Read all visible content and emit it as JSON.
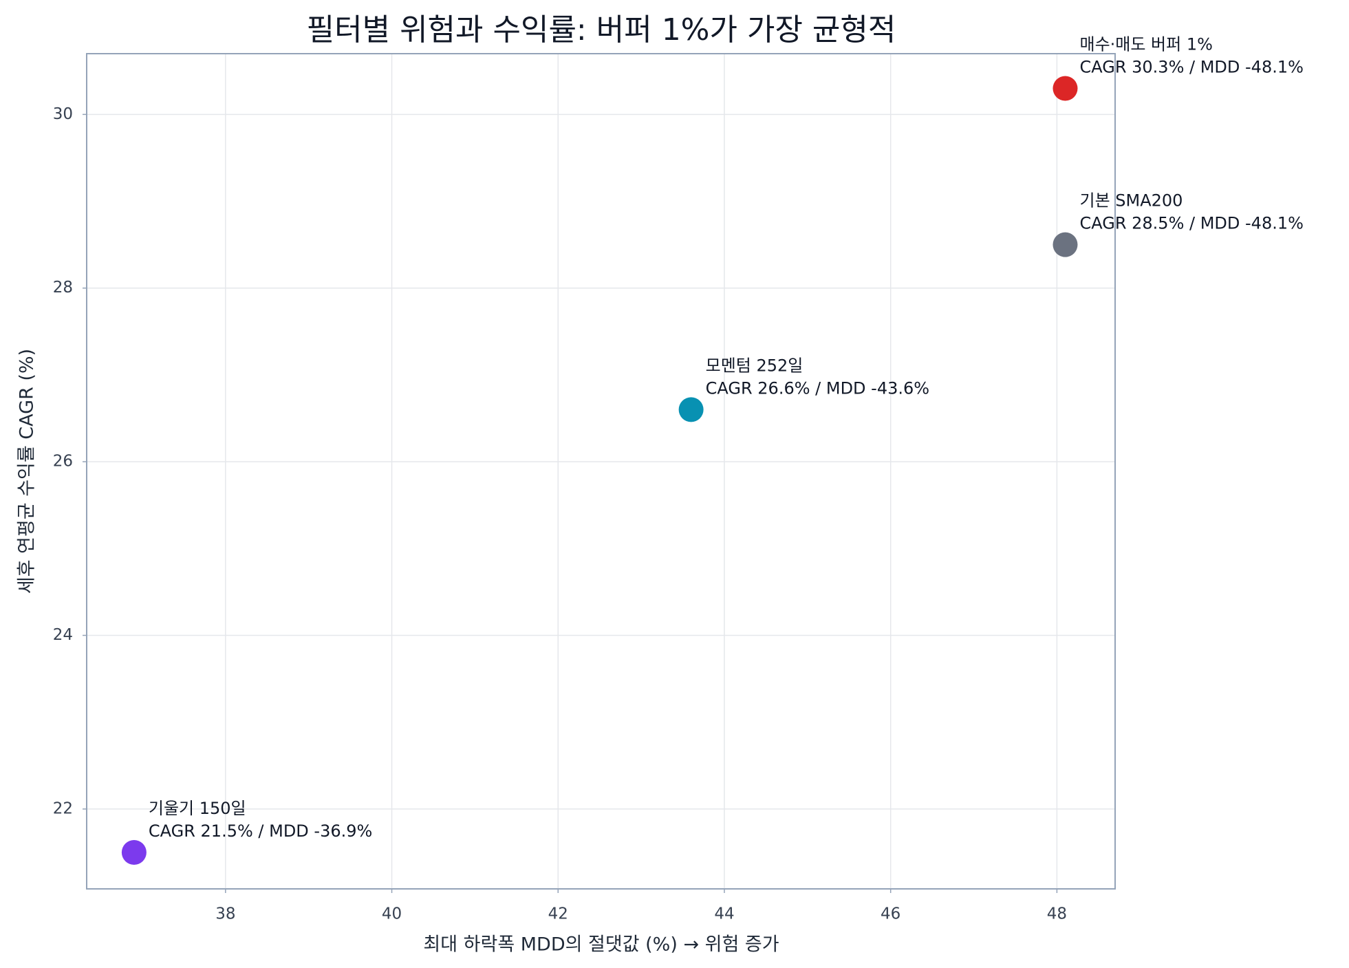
{
  "chart_data": {
    "type": "scatter",
    "title": "필터별 위험과 수익률: 버퍼 1%가 가장 균형적",
    "x_label": "최대 하락폭 MDD의 절댓값 (%)  → 위험 증가",
    "y_label": "세후 연평균 수익률 CAGR (%)",
    "xlim": [
      36.33,
      48.7
    ],
    "ylim": [
      21.08,
      30.7
    ],
    "xticks": [
      38,
      40,
      42,
      44,
      46,
      48
    ],
    "yticks": [
      22,
      24,
      26,
      28,
      30
    ],
    "grid": true,
    "series": [
      {
        "name": "기울기 150일",
        "color": "#7c3aed",
        "x": [
          36.9
        ],
        "values": [
          21.5
        ],
        "value_labels": [
          "CAGR 21.5% / MDD -36.9%"
        ]
      },
      {
        "name": "모멘텀 252일",
        "color": "#0891b2",
        "x": [
          43.6
        ],
        "values": [
          26.6
        ],
        "value_labels": [
          "CAGR 26.6% / MDD -43.6%"
        ]
      },
      {
        "name": "기본 SMA200",
        "color": "#6b7280",
        "x": [
          48.1
        ],
        "values": [
          28.5
        ],
        "value_labels": [
          "CAGR 28.5% / MDD -48.1%"
        ]
      },
      {
        "name": "매수·매도 버퍼 1%",
        "color": "#dc2626",
        "x": [
          48.1
        ],
        "values": [
          30.3
        ],
        "value_labels": [
          "CAGR 30.3% / MDD -48.1%"
        ]
      }
    ]
  }
}
